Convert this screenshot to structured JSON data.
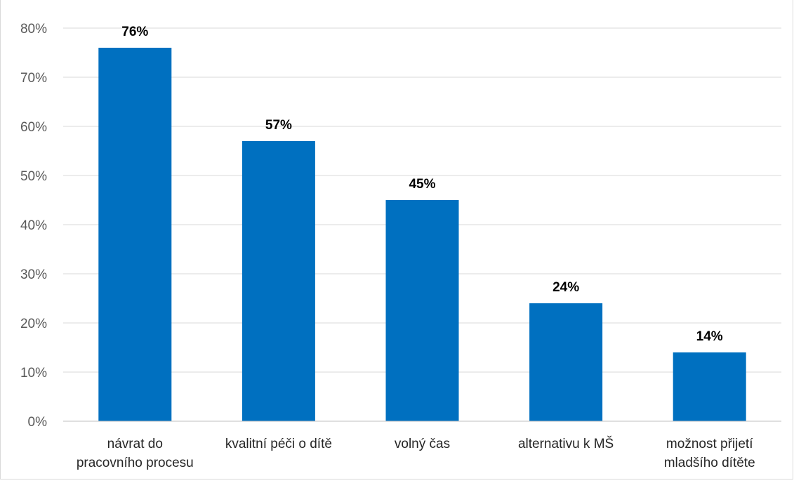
{
  "chart_data": {
    "type": "bar",
    "title": "",
    "xlabel": "",
    "ylabel": "",
    "categories": [
      [
        "návrat do",
        "pracovního procesu"
      ],
      [
        "kvalitní péči o dítě"
      ],
      [
        "volný čas"
      ],
      [
        "alternativu k MŠ"
      ],
      [
        "možnost přijetí",
        "mladšího dítěte"
      ]
    ],
    "values": [
      76,
      57,
      45,
      24,
      14
    ],
    "data_labels": [
      "76%",
      "57%",
      "45%",
      "24%",
      "14%"
    ],
    "ylim": [
      0,
      80
    ],
    "yticks": [
      0,
      10,
      20,
      30,
      40,
      50,
      60,
      70,
      80
    ],
    "ytick_labels": [
      "0%",
      "10%",
      "20%",
      "30%",
      "40%",
      "50%",
      "60%",
      "70%",
      "80%"
    ],
    "grid": true,
    "legend": "none",
    "colors": {
      "bar": "#0070C0",
      "grid": "#d9d9d9",
      "axis": "#bfbfbf"
    }
  }
}
